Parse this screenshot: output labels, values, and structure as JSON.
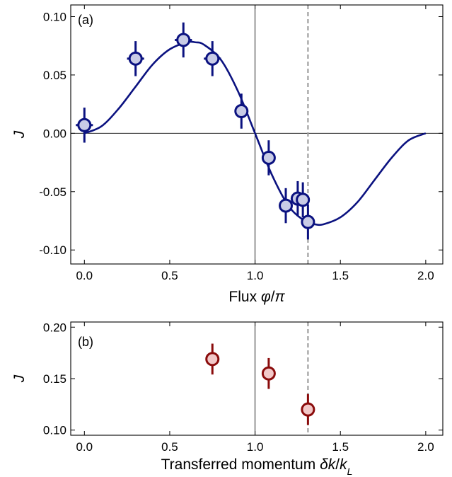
{
  "chart_data": [
    {
      "type": "scatter",
      "panel_label": "(a)",
      "xlabel": "Flux φ/π",
      "xlabel_parts": [
        "Flux ",
        "φ",
        "/",
        "π"
      ],
      "ylabel": "J",
      "xlim": [
        -0.08,
        2.1
      ],
      "ylim": [
        -0.112,
        0.11
      ],
      "xticks": [
        0.0,
        0.5,
        1.0,
        1.5,
        2.0
      ],
      "xtick_labels": [
        "0.0",
        "0.5",
        "1.0",
        "1.5",
        "2.0"
      ],
      "yticks": [
        -0.1,
        -0.05,
        0.0,
        0.05,
        0.1
      ],
      "ytick_labels": [
        "-0.10",
        "-0.05",
        "0.00",
        "0.05",
        "0.10"
      ],
      "reference_lines": {
        "vertical_solid": 1.0,
        "vertical_dashed": 1.31,
        "horizontal_solid": 0.0
      },
      "grid": false,
      "colors": {
        "marker_edge": "#0b1280",
        "marker_fill": "#c9cce6",
        "curve": "#0b1280",
        "dashed_line": "#a0a0a0"
      },
      "points": [
        {
          "x": 0.0,
          "y": 0.007,
          "yerr": 0.015,
          "xerr": 0.05
        },
        {
          "x": 0.3,
          "y": 0.064,
          "yerr": 0.015,
          "xerr": 0.05
        },
        {
          "x": 0.58,
          "y": 0.08,
          "yerr": 0.015,
          "xerr": 0.05
        },
        {
          "x": 0.75,
          "y": 0.064,
          "yerr": 0.015,
          "xerr": 0.05
        },
        {
          "x": 0.92,
          "y": 0.019,
          "yerr": 0.015,
          "xerr": 0.0
        },
        {
          "x": 1.08,
          "y": -0.021,
          "yerr": 0.015,
          "xerr": 0.0
        },
        {
          "x": 1.18,
          "y": -0.062,
          "yerr": 0.015,
          "xerr": 0.0
        },
        {
          "x": 1.25,
          "y": -0.056,
          "yerr": 0.015,
          "xerr": 0.0
        },
        {
          "x": 1.28,
          "y": -0.057,
          "yerr": 0.015,
          "xerr": 0.03
        },
        {
          "x": 1.31,
          "y": -0.076,
          "yerr": 0.015,
          "xerr": 0.0
        }
      ],
      "fit_curve": {
        "x": [
          0.0,
          0.1,
          0.2,
          0.3,
          0.4,
          0.5,
          0.6,
          0.65,
          0.7,
          0.8,
          0.9,
          1.0,
          1.1,
          1.2,
          1.3,
          1.35,
          1.4,
          1.5,
          1.6,
          1.7,
          1.8,
          1.9,
          2.0
        ],
        "y": [
          0.0,
          0.006,
          0.021,
          0.04,
          0.059,
          0.072,
          0.078,
          0.078,
          0.076,
          0.063,
          0.036,
          0.0,
          -0.036,
          -0.063,
          -0.076,
          -0.078,
          -0.078,
          -0.072,
          -0.059,
          -0.04,
          -0.021,
          -0.006,
          0.0
        ]
      }
    },
    {
      "type": "scatter",
      "panel_label": "(b)",
      "xlabel": "Transferred momentum δk/k_L",
      "xlabel_parts": [
        "Transferred momentum ",
        "δk",
        "/",
        "k",
        "L"
      ],
      "ylabel": "J",
      "xlim": [
        -0.08,
        2.1
      ],
      "ylim": [
        0.095,
        0.205
      ],
      "xticks": [
        0.0,
        0.5,
        1.0,
        1.5,
        2.0
      ],
      "xtick_labels": [
        "0.0",
        "0.5",
        "1.0",
        "1.5",
        "2.0"
      ],
      "yticks": [
        0.1,
        0.15,
        0.2
      ],
      "ytick_labels": [
        "0.10",
        "0.15",
        "0.20"
      ],
      "reference_lines": {
        "vertical_solid": 1.0,
        "vertical_dashed": 1.31
      },
      "grid": false,
      "colors": {
        "marker_edge": "#8a0b0b",
        "marker_fill": "#f2c8c8",
        "dashed_line": "#a0a0a0"
      },
      "points": [
        {
          "x": 0.75,
          "y": 0.169,
          "yerr": 0.015
        },
        {
          "x": 1.08,
          "y": 0.155,
          "yerr": 0.015
        },
        {
          "x": 1.31,
          "y": 0.12,
          "yerr": 0.015
        }
      ]
    }
  ]
}
